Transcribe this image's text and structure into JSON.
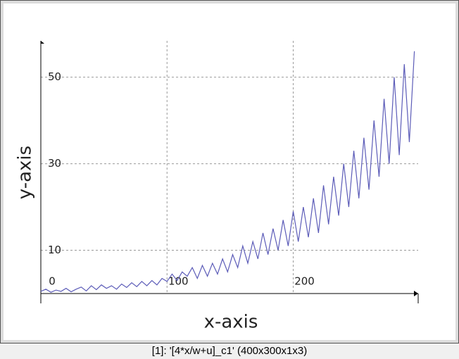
{
  "caption": "[1]: '[4*x/w+u]_c1' (400x300x1x3)",
  "chart_data": {
    "type": "line",
    "x_label": "x-axis",
    "y_label": "y-axis",
    "x": [
      0,
      4,
      8,
      12,
      16,
      20,
      24,
      28,
      32,
      36,
      40,
      44,
      48,
      52,
      56,
      60,
      64,
      68,
      72,
      76,
      80,
      84,
      88,
      92,
      96,
      100,
      104,
      108,
      112,
      116,
      120,
      124,
      128,
      132,
      136,
      140,
      144,
      148,
      152,
      156,
      160,
      164,
      168,
      172,
      176,
      180,
      184,
      188,
      192,
      196,
      200,
      204,
      208,
      212,
      216,
      220,
      224,
      228,
      232,
      236,
      240,
      244,
      248,
      252,
      256,
      260,
      264,
      268,
      272,
      276,
      280,
      284,
      288,
      292,
      296
    ],
    "series": [
      {
        "color": "#5c5cb8",
        "values": [
          0.5,
          1,
          0.3,
          0.8,
          0.5,
          1.2,
          0.4,
          1,
          1.5,
          0.6,
          1.8,
          0.9,
          2,
          1.2,
          1.8,
          1,
          2.2,
          1.4,
          2.5,
          1.6,
          2.8,
          1.8,
          3,
          2,
          3.5,
          2.8,
          4.5,
          3,
          5,
          4,
          6,
          3.5,
          6.5,
          4,
          7,
          4.5,
          8,
          5,
          9,
          6,
          11,
          7,
          12,
          8,
          14,
          9,
          15,
          10,
          17,
          11,
          19,
          12,
          20,
          13,
          22,
          14,
          25,
          16,
          27,
          18,
          30,
          20,
          33,
          22,
          36,
          24,
          40,
          27,
          45,
          30,
          50,
          32,
          53,
          35,
          56
        ]
      }
    ],
    "xlim": [
      0,
      299
    ],
    "ylim": [
      0,
      58.4
    ],
    "xticks": [
      0,
      100,
      200
    ],
    "yticks": [
      10,
      30,
      50
    ],
    "grid": true
  }
}
